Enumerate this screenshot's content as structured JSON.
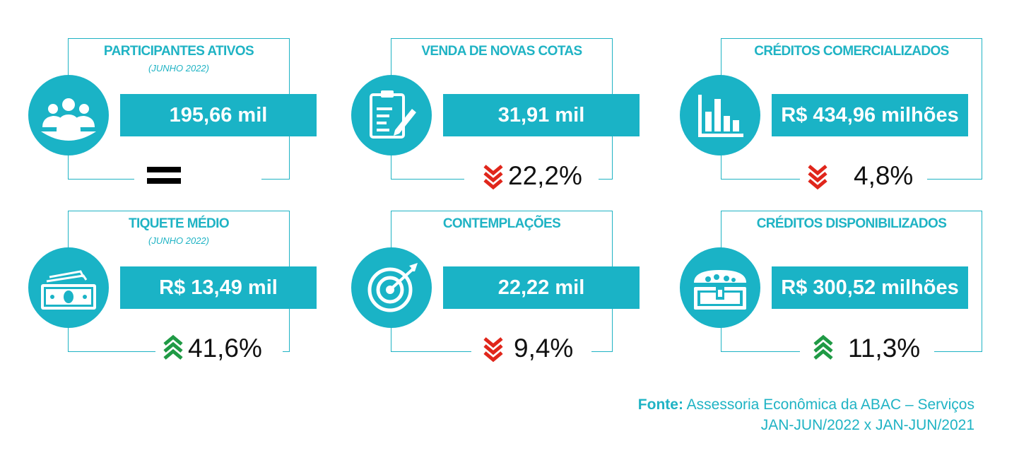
{
  "cards": [
    {
      "title": "PARTICIPANTES ATIVOS",
      "subtitle": "(JUNHO 2022)",
      "value": "195,66 mil",
      "change": "",
      "trend": "equal",
      "icon": "people-icon"
    },
    {
      "title": "VENDA DE NOVAS COTAS",
      "subtitle": "",
      "value": "31,91 mil",
      "change": "22,2%",
      "trend": "down",
      "icon": "clipboard-pen-icon"
    },
    {
      "title": "CRÉDITOS COMERCIALIZADOS",
      "subtitle": "",
      "value": "R$ 434,96 milhões",
      "change": "4,8%",
      "trend": "down",
      "icon": "bar-chart-icon"
    },
    {
      "title": "TIQUETE MÉDIO",
      "subtitle": "(JUNHO 2022)",
      "value": "R$ 13,49 mil",
      "change": "41,6%",
      "trend": "up",
      "icon": "money-bills-icon"
    },
    {
      "title": "CONTEMPLAÇÕES",
      "subtitle": "",
      "value": "22,22 mil",
      "change": "9,4%",
      "trend": "down",
      "icon": "target-icon"
    },
    {
      "title": "CRÉDITOS DISPONIBILIZADOS",
      "subtitle": "",
      "value": "R$ 300,52 milhões",
      "change": "11,3%",
      "trend": "up",
      "icon": "treasure-chest-icon"
    }
  ],
  "source": {
    "label": "Fonte:",
    "text": "Assessoria Econômica da ABAC – Serviços",
    "period": "JAN-JUN/2022 x JAN-JUN/2021"
  },
  "colors": {
    "accent": "#1ab3c6",
    "down": "#e0261b",
    "up": "#1f9a45"
  }
}
